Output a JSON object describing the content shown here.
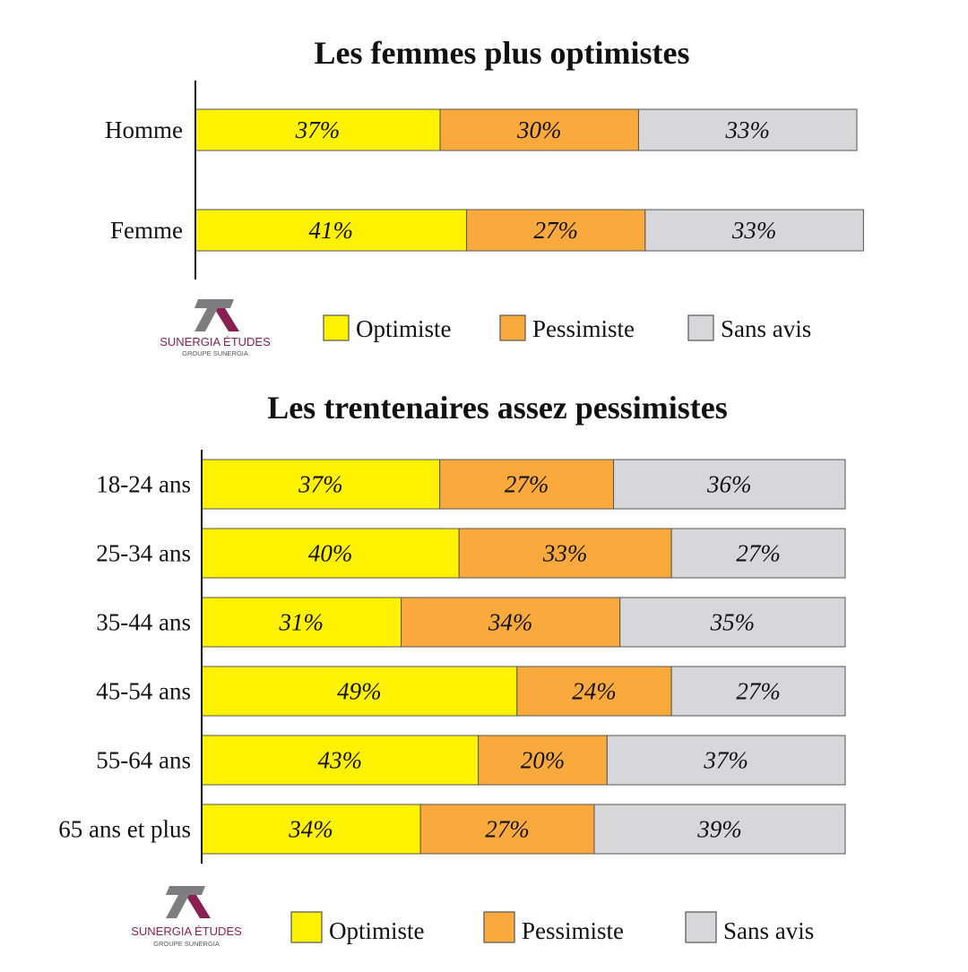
{
  "colors": {
    "optimiste": "#FFF200",
    "pessimiste": "#FAAA3C",
    "sans_avis": "#D7D7D9",
    "logo_main": "#8a1f53",
    "logo_grey": "#7d7d80"
  },
  "logo": {
    "name": "SUNERGIA ÉTUDES",
    "group": "GROUPE SUNERGIA"
  },
  "legend": [
    "Optimiste",
    "Pessimiste",
    "Sans avis"
  ],
  "chart_data": [
    {
      "type": "bar",
      "orientation": "horizontal",
      "stacked": true,
      "title": "Les femmes plus optimistes",
      "categories": [
        "Homme",
        "Femme"
      ],
      "series": [
        {
          "name": "Optimiste",
          "values": [
            37,
            41
          ]
        },
        {
          "name": "Pessimiste",
          "values": [
            30,
            27
          ]
        },
        {
          "name": "Sans avis",
          "values": [
            33,
            33
          ]
        }
      ],
      "value_suffix": "%",
      "xlim": [
        0,
        100
      ],
      "legend_position": "bottom"
    },
    {
      "type": "bar",
      "orientation": "horizontal",
      "stacked": true,
      "title": "Les trentenaires assez pessimistes",
      "categories": [
        "18-24 ans",
        "25-34 ans",
        "35-44 ans",
        "45-54 ans",
        "55-64 ans",
        "65 ans et plus"
      ],
      "series": [
        {
          "name": "Optimiste",
          "values": [
            37,
            40,
            31,
            49,
            43,
            34
          ]
        },
        {
          "name": "Pessimiste",
          "values": [
            27,
            33,
            34,
            24,
            20,
            27
          ]
        },
        {
          "name": "Sans avis",
          "values": [
            36,
            27,
            35,
            27,
            37,
            39
          ]
        }
      ],
      "value_suffix": "%",
      "xlim": [
        0,
        100
      ],
      "legend_position": "bottom"
    }
  ]
}
